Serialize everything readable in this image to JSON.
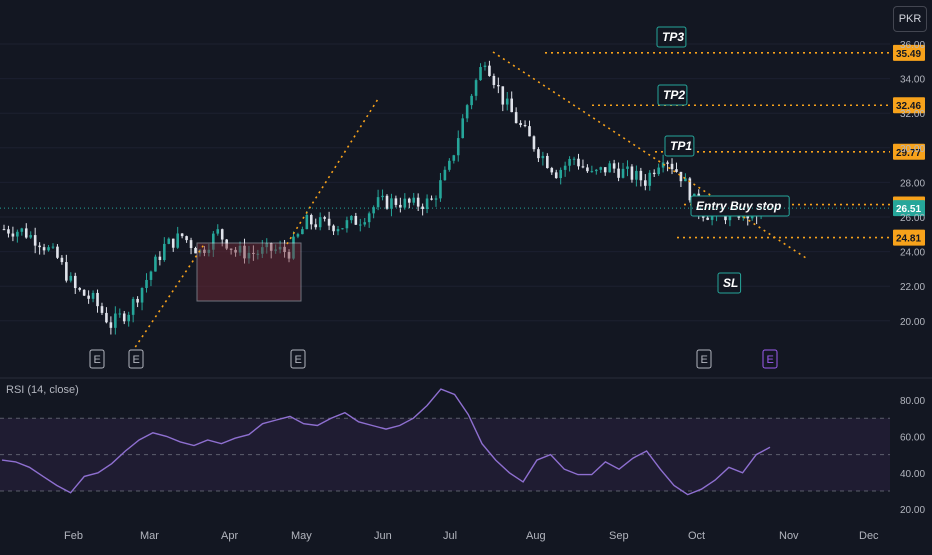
{
  "currency_button": "PKR",
  "rsi_legend": "RSI (14, close)",
  "colors": {
    "background": "#131722",
    "up": "#26a69a",
    "down": "#e0e3eb",
    "level": "#f7a21b",
    "rsi": "#8e6fd0",
    "rsi_band": "#2a2140",
    "accent": "#26a69a"
  },
  "chart_data": [
    {
      "type": "candlestick",
      "y_ticks": [
        "36.00",
        "34.00",
        "32.00",
        "30.00",
        "28.00",
        "26.00",
        "24.00",
        "22.00",
        "20.00"
      ],
      "x_ticks": [
        "Feb",
        "Mar",
        "Apr",
        "May",
        "Jun",
        "Jul",
        "Aug",
        "Sep",
        "Oct",
        "Nov",
        "Dec"
      ],
      "ylim": [
        19,
        37
      ],
      "current_price": 26.51,
      "series_points": [
        [
          "Jan 01",
          25.3
        ],
        [
          "Jan 08",
          25.2
        ],
        [
          "Jan 15",
          24.6
        ],
        [
          "Jan 22",
          23.6
        ],
        [
          "Jan 29",
          21.8
        ],
        [
          "Feb 05",
          21.2
        ],
        [
          "Feb 12",
          19.8
        ],
        [
          "Feb 19",
          20.6
        ],
        [
          "Feb 26",
          22.4
        ],
        [
          "Mar 04",
          24.3
        ],
        [
          "Mar 11",
          24.9
        ],
        [
          "Mar 18",
          24.0
        ],
        [
          "Mar 25",
          25.1
        ],
        [
          "Apr 01",
          24.0
        ],
        [
          "Apr 08",
          23.9
        ],
        [
          "Apr 15",
          24.1
        ],
        [
          "Apr 22",
          24.0
        ],
        [
          "Apr 29",
          25.7
        ],
        [
          "May 06",
          25.6
        ],
        [
          "May 13",
          25.5
        ],
        [
          "May 20",
          25.9
        ],
        [
          "May 27",
          26.8
        ],
        [
          "Jun 03",
          26.9
        ],
        [
          "Jun 10",
          26.7
        ],
        [
          "Jun 17",
          26.9
        ],
        [
          "Jun 24",
          28.9
        ],
        [
          "Jul 01",
          32.5
        ],
        [
          "Jul 08",
          35.2
        ],
        [
          "Jul 15",
          32.8
        ],
        [
          "Jul 22",
          31.2
        ],
        [
          "Jul 29",
          29.8
        ],
        [
          "Aug 05",
          28.6
        ],
        [
          "Aug 12",
          29.4
        ],
        [
          "Aug 19",
          28.4
        ],
        [
          "Aug 26",
          28.9
        ],
        [
          "Sep 02",
          28.5
        ],
        [
          "Sep 09",
          28.1
        ],
        [
          "Sep 16",
          29.6
        ],
        [
          "Sep 23",
          28.4
        ],
        [
          "Sep 30",
          26.4
        ],
        [
          "Oct 07",
          26.0
        ],
        [
          "Oct 14",
          26.3
        ],
        [
          "Oct 21",
          26.1
        ],
        [
          "Oct 28",
          26.51
        ]
      ],
      "levels": [
        {
          "label": "TP3",
          "value": "35.49"
        },
        {
          "label": "TP2",
          "value": "32.46"
        },
        {
          "label": "TP1",
          "value": "29.77"
        },
        {
          "label": "Entry Buy stop",
          "value": "26.72"
        },
        {
          "label": "SL",
          "value": "24.81"
        }
      ],
      "earnings_markers": [
        "E",
        "E",
        "E",
        "E",
        "E"
      ]
    },
    {
      "type": "line",
      "y_ticks": [
        "80.00",
        "60.00",
        "40.00",
        "20.00"
      ],
      "ylim": [
        18,
        90
      ],
      "bands": [
        30,
        50,
        70
      ],
      "values": [
        47,
        46,
        43,
        38,
        33,
        29,
        38,
        40,
        45,
        52,
        58,
        62,
        60,
        57,
        55,
        58,
        56,
        59,
        61,
        67,
        69,
        71,
        67,
        66,
        70,
        73,
        68,
        66,
        64,
        66,
        70,
        77,
        86,
        83,
        72,
        56,
        47,
        40,
        35,
        47,
        50,
        42,
        39,
        39,
        46,
        42,
        48,
        52,
        42,
        33,
        28,
        31,
        36,
        43,
        40,
        50,
        54
      ]
    }
  ]
}
